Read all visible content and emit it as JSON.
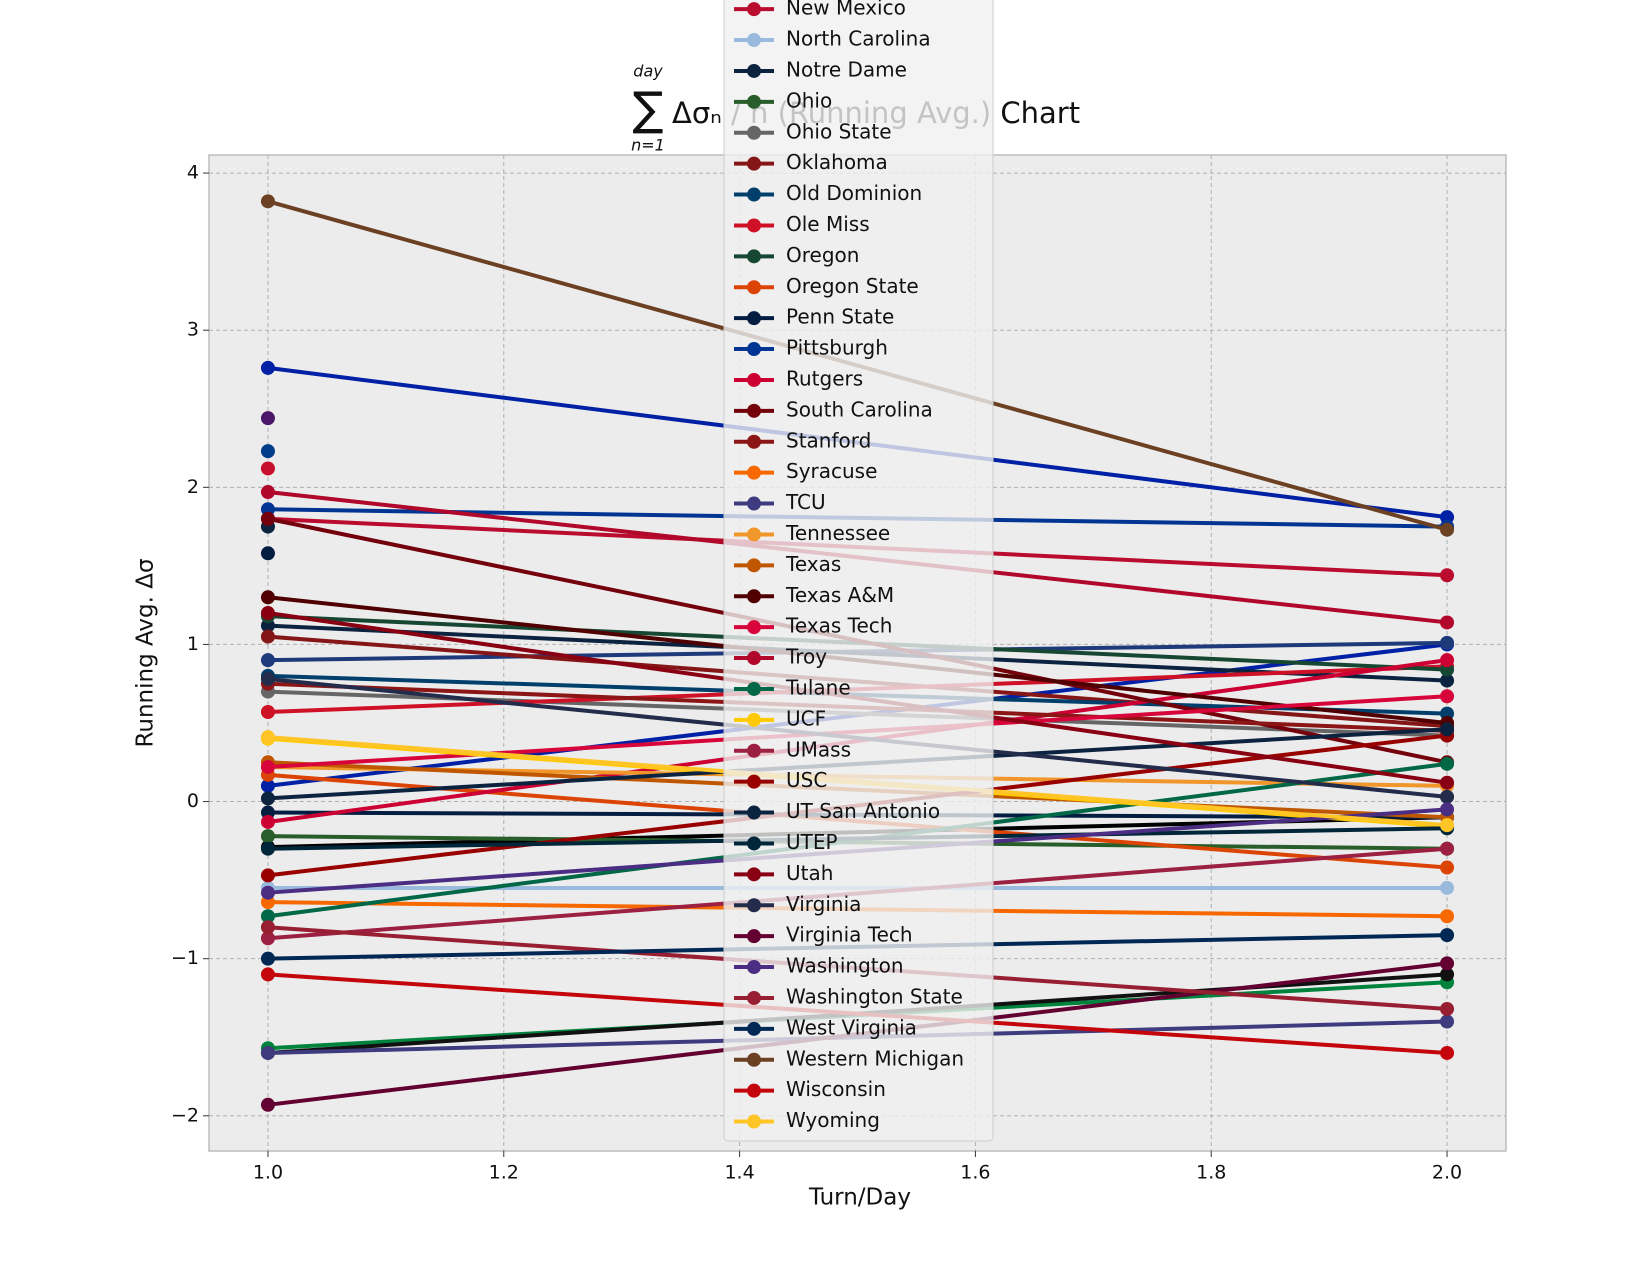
{
  "chart_data": {
    "type": "line",
    "title_symbol": "∑",
    "title_upper": "day",
    "title_lower": "n=1",
    "title": "Δσₙ / n (Running Avg.) Chart",
    "x_label": "Turn/Day",
    "y_label": "Running Avg. Δσ",
    "x": [
      1.0,
      2.0
    ],
    "xlim": [
      0.95,
      2.05
    ],
    "xticks": [
      {
        "value": 1.0,
        "label": "1.0"
      },
      {
        "value": 1.2,
        "label": "1.2"
      },
      {
        "value": 1.4,
        "label": "1.4"
      },
      {
        "value": 1.6,
        "label": "1.6"
      },
      {
        "value": 1.8,
        "label": "1.8"
      },
      {
        "value": 2.0,
        "label": "2.0"
      }
    ],
    "ylim": [
      -2.224,
      4.115
    ],
    "yticks": [
      {
        "value": -2,
        "label": "−2"
      },
      {
        "value": -1,
        "label": "−1"
      },
      0,
      1,
      2,
      3,
      4
    ],
    "grid": true,
    "legend": "upper center",
    "series": [
      {
        "color": "#0021a5",
        "values": [
          2.76,
          1.81
        ]
      },
      {
        "color": "#4b1869",
        "values": [
          2.44,
          null
        ]
      },
      {
        "color": "#003c8a",
        "values": [
          2.23,
          null
        ]
      },
      {
        "color": "#c8102e",
        "values": [
          2.12,
          null
        ]
      },
      {
        "color": "#0c2340",
        "values": [
          1.75,
          null
        ]
      },
      {
        "color": "#041e42",
        "values": [
          1.58,
          null
        ]
      },
      {
        "color": "#000000",
        "values": [
          -0.29,
          -0.1
        ]
      },
      {
        "color": "#0021a5",
        "values": [
          0.1,
          1.0
        ]
      },
      {
        "color": "#00843d",
        "values": [
          -1.57,
          -1.15
        ]
      },
      {
        "color": "#111111",
        "values": [
          -1.6,
          -1.1
        ]
      },
      {
        "color": "#1e3a7b",
        "values": [
          0.9,
          1.01
        ]
      },
      {
        "name": "New Mexico",
        "color": "#ba0c2f",
        "values": [
          1.8,
          1.44
        ]
      },
      {
        "name": "North Carolina",
        "color": "#99badd",
        "values": [
          -0.55,
          -0.55
        ]
      },
      {
        "name": "Notre Dame",
        "color": "#0c2340",
        "values": [
          1.12,
          0.77
        ]
      },
      {
        "name": "Ohio",
        "color": "#295e2a",
        "values": [
          -0.22,
          -0.3
        ]
      },
      {
        "name": "Ohio State",
        "color": "#666666",
        "values": [
          0.7,
          0.42
        ]
      },
      {
        "name": "Oklahoma",
        "color": "#841617",
        "values": [
          1.05,
          0.48
        ]
      },
      {
        "name": "Old Dominion",
        "color": "#003f6b",
        "values": [
          0.8,
          0.56
        ]
      },
      {
        "name": "Ole Miss",
        "color": "#ce1126",
        "values": [
          0.57,
          0.86
        ]
      },
      {
        "name": "Oregon",
        "color": "#154733",
        "values": [
          1.18,
          0.84
        ]
      },
      {
        "name": "Oregon State",
        "color": "#dc4405",
        "values": [
          0.17,
          -0.42
        ]
      },
      {
        "name": "Penn State",
        "color": "#041e42",
        "values": [
          -0.07,
          -0.1
        ]
      },
      {
        "name": "Pittsburgh",
        "color": "#003594",
        "values": [
          1.86,
          1.75
        ]
      },
      {
        "name": "Rutgers",
        "color": "#cc0033",
        "values": [
          -0.13,
          0.9
        ]
      },
      {
        "name": "South Carolina",
        "color": "#73000a",
        "values": [
          1.8,
          0.25
        ]
      },
      {
        "name": "Stanford",
        "color": "#8c1515",
        "values": [
          0.75,
          0.45
        ]
      },
      {
        "name": "Syracuse",
        "color": "#f76900",
        "values": [
          -0.64,
          -0.73
        ]
      },
      {
        "name": "TCU",
        "color": "#3e3b7e",
        "values": [
          -1.6,
          -1.4
        ]
      },
      {
        "name": "Tennessee",
        "color": "#f0962a",
        "values": [
          0.22,
          0.1
        ]
      },
      {
        "name": "Texas",
        "color": "#bf5700",
        "values": [
          0.25,
          -0.1
        ]
      },
      {
        "name": "Texas A&M",
        "color": "#500000",
        "values": [
          1.3,
          0.5
        ]
      },
      {
        "name": "Texas Tech",
        "color": "#d8053a",
        "values": [
          0.22,
          0.67
        ]
      },
      {
        "name": "Troy",
        "color": "#b0072a",
        "values": [
          1.97,
          1.14
        ]
      },
      {
        "name": "Tulane",
        "color": "#006747",
        "values": [
          -0.73,
          0.24
        ]
      },
      {
        "name": "UCF",
        "color": "#ffc904",
        "values": [
          0.4,
          -0.16
        ]
      },
      {
        "name": "UMass",
        "color": "#9b2041",
        "values": [
          -0.87,
          -0.3
        ]
      },
      {
        "name": "USC",
        "color": "#990000",
        "values": [
          -0.47,
          0.42
        ]
      },
      {
        "name": "UT San Antonio",
        "color": "#0c2340",
        "values": [
          0.02,
          0.46
        ]
      },
      {
        "name": "UTEP",
        "color": "#00263a",
        "values": [
          -0.3,
          -0.17
        ]
      },
      {
        "name": "Utah",
        "color": "#890012",
        "values": [
          1.2,
          0.12
        ]
      },
      {
        "name": "Virginia",
        "color": "#232d4b",
        "values": [
          0.78,
          0.03
        ]
      },
      {
        "name": "Virginia Tech",
        "color": "#630031",
        "values": [
          -1.93,
          -1.03
        ]
      },
      {
        "name": "Washington",
        "color": "#4b2e83",
        "values": [
          -0.58,
          -0.05
        ]
      },
      {
        "name": "Washington State",
        "color": "#981e32",
        "values": [
          -0.8,
          -1.32
        ]
      },
      {
        "name": "West Virginia",
        "color": "#002855",
        "values": [
          -1.0,
          -0.85
        ]
      },
      {
        "name": "Western Michigan",
        "color": "#6c4023",
        "values": [
          3.82,
          1.73
        ]
      },
      {
        "name": "Wisconsin",
        "color": "#c5050c",
        "values": [
          -1.1,
          -1.6
        ]
      },
      {
        "name": "Wyoming",
        "color": "#ffc425",
        "values": [
          0.41,
          -0.15
        ]
      }
    ]
  }
}
